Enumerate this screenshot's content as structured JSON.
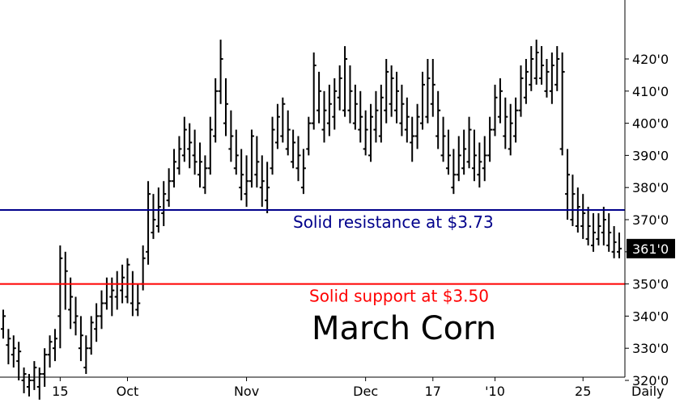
{
  "chart_data": {
    "type": "ohlc",
    "title": "March Corn",
    "period_label": "Daily",
    "price_axis": {
      "ylim": [
        311,
        430
      ],
      "ticks": [
        320,
        330,
        340,
        350,
        360,
        370,
        380,
        390,
        400,
        410,
        420
      ],
      "tick_labels": [
        "320'0",
        "330'0",
        "340'0",
        "350'0",
        "360'0",
        "370'0",
        "380'0",
        "390'0",
        "400'0",
        "410'0",
        "420'0"
      ]
    },
    "date_axis": {
      "labels": [
        {
          "text": "15",
          "bar": 11
        },
        {
          "text": "Oct",
          "bar": 24
        },
        {
          "text": "Nov",
          "bar": 47
        },
        {
          "text": "Dec",
          "bar": 70
        },
        {
          "text": "17",
          "bar": 83
        },
        {
          "text": "'10",
          "bar": 95
        },
        {
          "text": "25",
          "bar": 112
        }
      ]
    },
    "last_price": {
      "value": 361,
      "label": "361'0",
      "color": "#000000"
    },
    "annotations": [
      {
        "text": "Solid resistance at $3.73",
        "value": 373,
        "color": "#00008b"
      },
      {
        "text": "Solid support at $3.50",
        "value": 350,
        "color": "#ff0000"
      }
    ],
    "bars": [
      [
        336,
        342,
        333,
        340
      ],
      [
        331,
        336,
        325,
        333
      ],
      [
        328,
        334,
        324,
        330
      ],
      [
        326,
        332,
        320,
        329
      ],
      [
        320,
        324,
        316,
        322
      ],
      [
        318,
        322,
        315,
        320
      ],
      [
        320,
        326,
        317,
        324
      ],
      [
        318,
        324,
        314,
        322
      ],
      [
        322,
        330,
        318,
        328
      ],
      [
        328,
        334,
        324,
        332
      ],
      [
        330,
        336,
        326,
        333
      ],
      [
        340,
        362,
        330,
        358
      ],
      [
        350,
        360,
        342,
        354
      ],
      [
        342,
        352,
        336,
        346
      ],
      [
        338,
        346,
        334,
        340
      ],
      [
        330,
        340,
        326,
        334
      ],
      [
        324,
        334,
        322,
        330
      ],
      [
        330,
        340,
        328,
        338
      ],
      [
        336,
        344,
        332,
        340
      ],
      [
        340,
        348,
        336,
        344
      ],
      [
        344,
        352,
        342,
        350
      ],
      [
        346,
        352,
        340,
        348
      ],
      [
        346,
        354,
        342,
        350
      ],
      [
        348,
        356,
        344,
        352
      ],
      [
        346,
        358,
        344,
        356
      ],
      [
        344,
        354,
        340,
        350
      ],
      [
        342,
        350,
        340,
        344
      ],
      [
        350,
        362,
        348,
        358
      ],
      [
        360,
        382,
        356,
        378
      ],
      [
        366,
        378,
        364,
        370
      ],
      [
        368,
        380,
        366,
        374
      ],
      [
        372,
        382,
        368,
        378
      ],
      [
        376,
        386,
        374,
        382
      ],
      [
        382,
        392,
        380,
        388
      ],
      [
        386,
        396,
        384,
        392
      ],
      [
        390,
        402,
        388,
        398
      ],
      [
        392,
        400,
        386,
        394
      ],
      [
        390,
        398,
        384,
        388
      ],
      [
        384,
        394,
        380,
        388
      ],
      [
        380,
        390,
        378,
        386
      ],
      [
        386,
        402,
        384,
        398
      ],
      [
        396,
        414,
        394,
        410
      ],
      [
        410,
        426,
        406,
        420
      ],
      [
        400,
        414,
        396,
        406
      ],
      [
        392,
        404,
        388,
        396
      ],
      [
        386,
        398,
        384,
        390
      ],
      [
        380,
        392,
        376,
        384
      ],
      [
        378,
        390,
        374,
        382
      ],
      [
        382,
        398,
        380,
        396
      ],
      [
        384,
        396,
        380,
        388
      ],
      [
        380,
        390,
        374,
        382
      ],
      [
        376,
        388,
        372,
        380
      ],
      [
        386,
        402,
        384,
        398
      ],
      [
        394,
        406,
        392,
        402
      ],
      [
        396,
        408,
        394,
        406
      ],
      [
        392,
        404,
        390,
        398
      ],
      [
        388,
        398,
        386,
        394
      ],
      [
        386,
        396,
        382,
        390
      ],
      [
        380,
        392,
        378,
        386
      ],
      [
        392,
        402,
        390,
        400
      ],
      [
        400,
        422,
        398,
        418
      ],
      [
        404,
        416,
        400,
        410
      ],
      [
        398,
        410,
        394,
        404
      ],
      [
        400,
        412,
        396,
        406
      ],
      [
        402,
        414,
        398,
        410
      ],
      [
        408,
        418,
        404,
        414
      ],
      [
        404,
        424,
        402,
        420
      ],
      [
        404,
        418,
        400,
        410
      ],
      [
        400,
        412,
        398,
        406
      ],
      [
        398,
        410,
        394,
        402
      ],
      [
        392,
        404,
        390,
        398
      ],
      [
        390,
        406,
        388,
        402
      ],
      [
        398,
        410,
        394,
        404
      ],
      [
        396,
        412,
        394,
        408
      ],
      [
        404,
        420,
        400,
        416
      ],
      [
        406,
        418,
        402,
        414
      ],
      [
        404,
        416,
        400,
        410
      ],
      [
        400,
        412,
        396,
        406
      ],
      [
        398,
        408,
        394,
        402
      ],
      [
        394,
        402,
        388,
        396
      ],
      [
        396,
        406,
        392,
        402
      ],
      [
        400,
        416,
        398,
        412
      ],
      [
        402,
        420,
        400,
        414
      ],
      [
        406,
        420,
        402,
        412
      ],
      [
        396,
        410,
        392,
        404
      ],
      [
        390,
        402,
        388,
        396
      ],
      [
        386,
        398,
        384,
        390
      ],
      [
        380,
        392,
        378,
        384
      ],
      [
        384,
        396,
        382,
        390
      ],
      [
        386,
        398,
        384,
        392
      ],
      [
        388,
        402,
        386,
        398
      ],
      [
        386,
        398,
        382,
        390
      ],
      [
        384,
        394,
        380,
        388
      ],
      [
        386,
        396,
        382,
        390
      ],
      [
        390,
        402,
        388,
        398
      ],
      [
        398,
        412,
        396,
        408
      ],
      [
        402,
        414,
        400,
        410
      ],
      [
        396,
        408,
        392,
        402
      ],
      [
        392,
        406,
        390,
        400
      ],
      [
        396,
        408,
        394,
        404
      ],
      [
        404,
        418,
        402,
        414
      ],
      [
        408,
        420,
        406,
        416
      ],
      [
        412,
        424,
        410,
        420
      ],
      [
        414,
        426,
        412,
        422
      ],
      [
        414,
        424,
        412,
        418
      ],
      [
        410,
        420,
        408,
        416
      ],
      [
        410,
        422,
        406,
        418
      ],
      [
        412,
        424,
        410,
        420
      ],
      [
        392,
        422,
        390,
        416
      ],
      [
        378,
        392,
        370,
        384
      ],
      [
        370,
        384,
        368,
        378
      ],
      [
        368,
        380,
        366,
        374
      ],
      [
        368,
        378,
        364,
        372
      ],
      [
        364,
        374,
        362,
        368
      ],
      [
        362,
        372,
        360,
        366
      ],
      [
        364,
        372,
        362,
        368
      ],
      [
        366,
        374,
        362,
        370
      ],
      [
        362,
        372,
        360,
        366
      ],
      [
        360,
        368,
        358,
        363
      ],
      [
        360,
        366,
        358,
        361
      ]
    ]
  }
}
